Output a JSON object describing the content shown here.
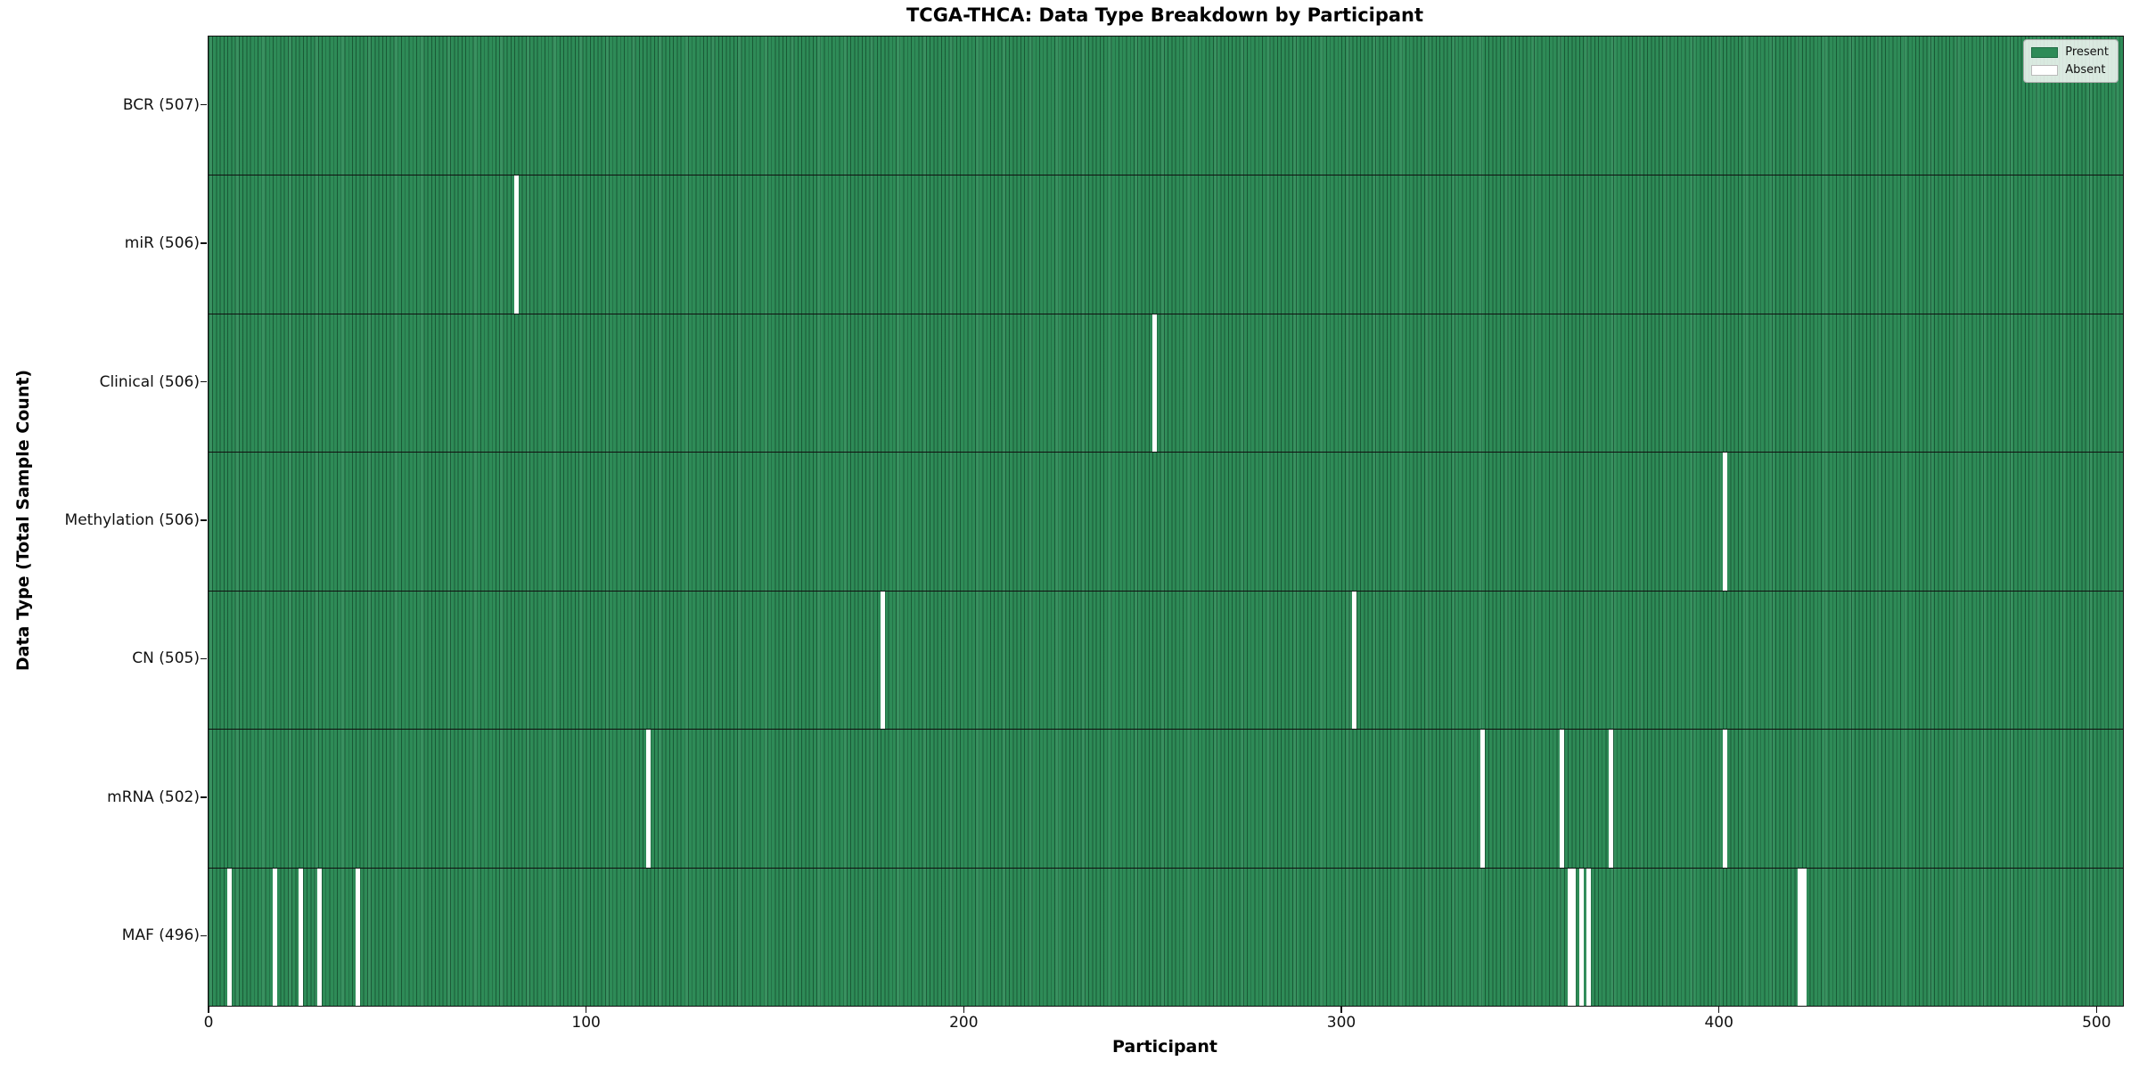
{
  "chart_data": {
    "type": "heatmap",
    "title": "TCGA-THCA: Data Type Breakdown by Participant",
    "xlabel": "Participant",
    "ylabel": "Data Type (Total Sample Count)",
    "x_ticks": [
      0,
      100,
      200,
      300,
      400,
      500
    ],
    "x_range": [
      0,
      507
    ],
    "n_participants": 507,
    "grid": false,
    "colors": {
      "present": "#2e8b57",
      "present_edge": "#1f6a43",
      "absent": "#ffffff",
      "row_divider": "#101010"
    },
    "legend": {
      "position": "upper-right",
      "entries": [
        {
          "label": "Present",
          "color": "#2e8b57"
        },
        {
          "label": "Absent",
          "color": "#ffffff"
        }
      ]
    },
    "rows": [
      {
        "label": "BCR (507)",
        "data_type": "BCR",
        "present_count": 507,
        "absent_participants": []
      },
      {
        "label": "miR (506)",
        "data_type": "miR",
        "present_count": 506,
        "absent_participants": [
          81
        ]
      },
      {
        "label": "Clinical (506)",
        "data_type": "Clinical",
        "present_count": 506,
        "absent_participants": [
          250
        ]
      },
      {
        "label": "Methylation (506)",
        "data_type": "Methylation",
        "present_count": 506,
        "absent_participants": [
          401
        ]
      },
      {
        "label": "CN (505)",
        "data_type": "CN",
        "present_count": 505,
        "absent_participants": [
          178,
          303
        ]
      },
      {
        "label": "mRNA (502)",
        "data_type": "mRNA",
        "present_count": 502,
        "absent_participants": [
          116,
          337,
          358,
          371,
          401
        ]
      },
      {
        "label": "MAF (496)",
        "data_type": "MAF",
        "present_count": 496,
        "absent_participants": [
          5,
          17,
          24,
          29,
          39,
          360,
          361,
          363,
          365,
          421,
          422
        ]
      }
    ]
  }
}
